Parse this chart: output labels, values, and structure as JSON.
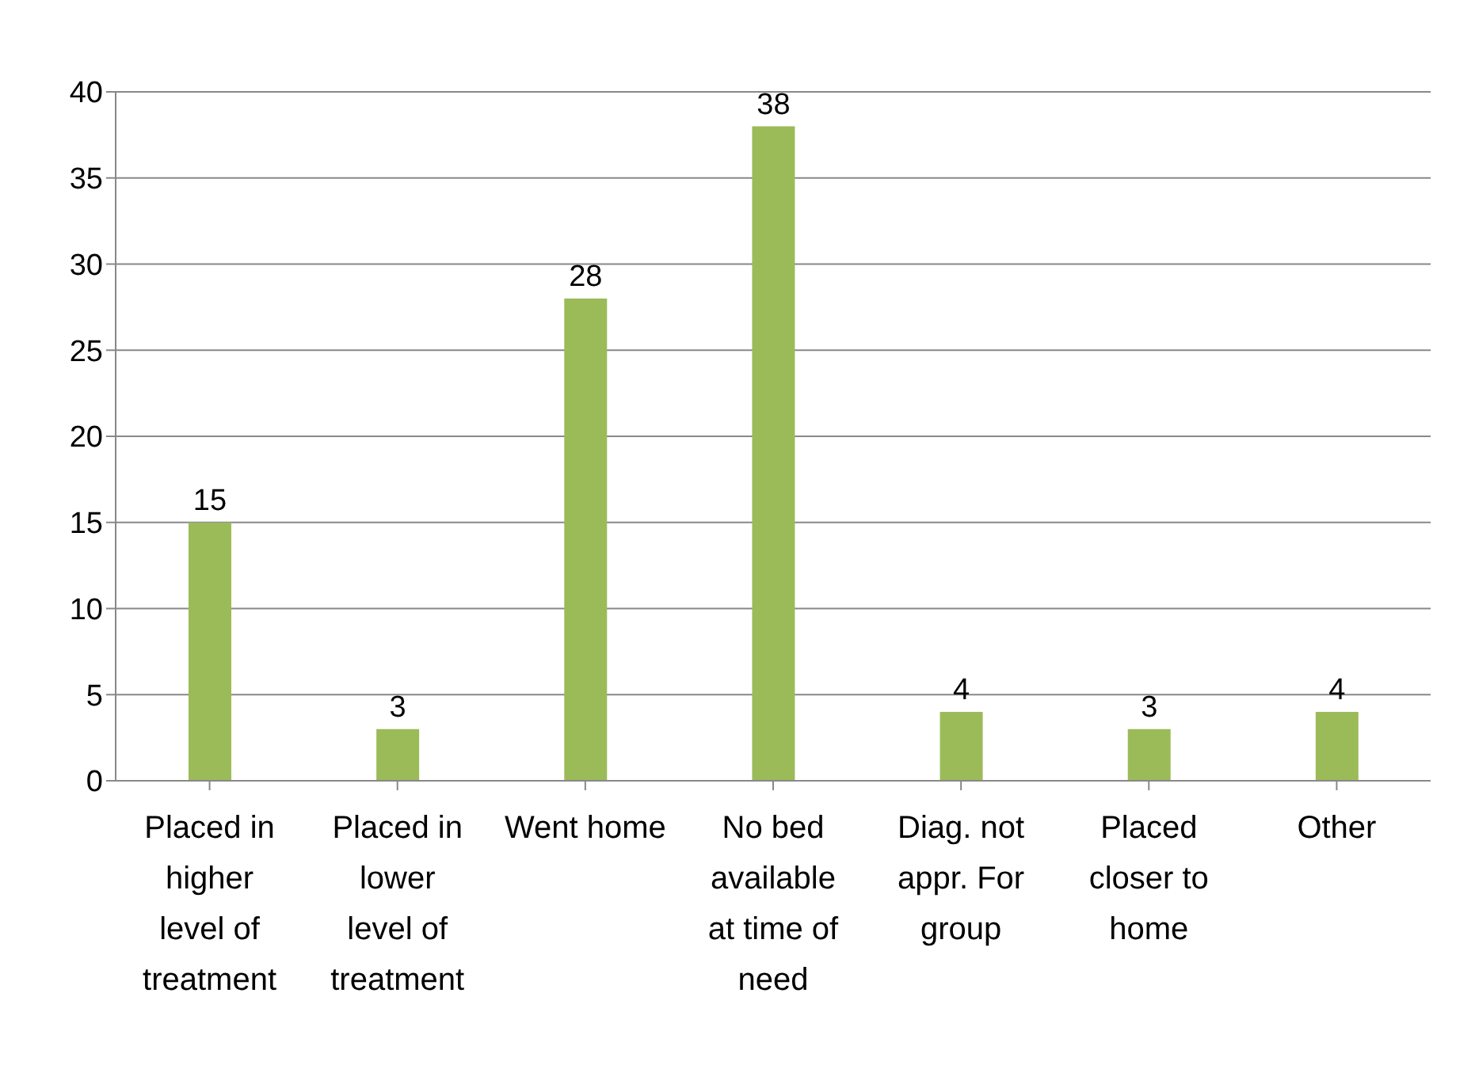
{
  "chart_data": {
    "type": "bar",
    "categories": [
      "Placed in higher level of treatment",
      "Placed in lower level of treatment",
      "Went home",
      "No bed available at time of need",
      "Diag. not appr. For group",
      "Placed closer to home",
      "Other"
    ],
    "values": [
      15,
      3,
      28,
      38,
      4,
      3,
      4
    ],
    "color": "#9bbb59",
    "ylim": [
      0,
      40
    ],
    "yticks": [
      0,
      5,
      10,
      15,
      20,
      25,
      30,
      35,
      40
    ],
    "grid": "y",
    "legend": false,
    "data_labels": true
  }
}
